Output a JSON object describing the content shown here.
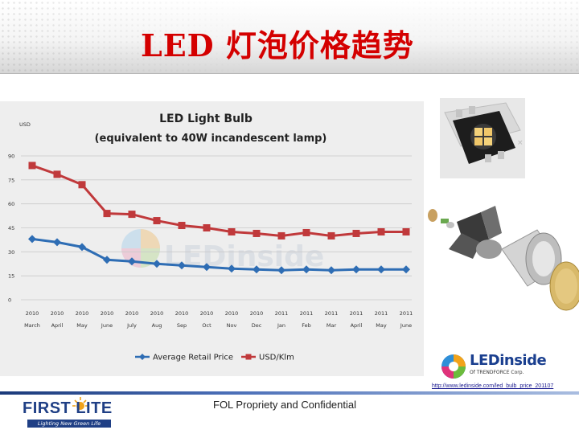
{
  "slide": {
    "title": "LED 灯泡价格趋势",
    "footer_text": "FOL Propriety and Confidential",
    "source_url": "http://www.ledinside.com/led_bulb_price_201107"
  },
  "logos": {
    "company": "FIRST LITE",
    "company_tagline": "Lighting New Green Life",
    "ledinside": "LEDinside",
    "ledinside_sub": "Of TRENDFORCE Corp.",
    "watermark": "LEDinside"
  },
  "colors": {
    "title": "#d40000",
    "series_retail": "#2e6db4",
    "series_klm": "#c0393b",
    "chart_bg": "#eeeeee",
    "brand_blue": "#1f3f85"
  },
  "chart_data": {
    "type": "line",
    "title": "LED Light Bulb",
    "subtitle": "(equivalent to 40W incandescent lamp)",
    "ylabel": "USD",
    "ylim": [
      0,
      90
    ],
    "yticks": [
      0,
      15,
      30,
      45,
      60,
      75,
      90
    ],
    "grid": true,
    "legend_position": "bottom",
    "categories": [
      {
        "year": "2010",
        "month": "March"
      },
      {
        "year": "2010",
        "month": "April"
      },
      {
        "year": "2010",
        "month": "May"
      },
      {
        "year": "2010",
        "month": "June"
      },
      {
        "year": "2010",
        "month": "July"
      },
      {
        "year": "2010",
        "month": "Aug"
      },
      {
        "year": "2010",
        "month": "Sep"
      },
      {
        "year": "2010",
        "month": "Oct"
      },
      {
        "year": "2010",
        "month": "Nov"
      },
      {
        "year": "2010",
        "month": "Dec"
      },
      {
        "year": "2011",
        "month": "Jan"
      },
      {
        "year": "2011",
        "month": "Feb"
      },
      {
        "year": "2011",
        "month": "Mar"
      },
      {
        "year": "2011",
        "month": "April"
      },
      {
        "year": "2011",
        "month": "May"
      },
      {
        "year": "2011",
        "month": "June"
      }
    ],
    "series": [
      {
        "name": "Average Retail Price",
        "marker": "diamond",
        "color": "#2e6db4",
        "values": [
          38,
          36,
          33,
          25,
          24,
          22.5,
          21.5,
          20.5,
          19.5,
          19,
          18.5,
          19,
          18.5,
          19,
          19,
          19
        ]
      },
      {
        "name": "USD/Klm",
        "marker": "square",
        "color": "#c0393b",
        "values": [
          84,
          78.5,
          72,
          54,
          53.5,
          49.5,
          46.5,
          45,
          42.5,
          41.5,
          40,
          42,
          40,
          41.5,
          42.5,
          42.5
        ]
      }
    ]
  }
}
